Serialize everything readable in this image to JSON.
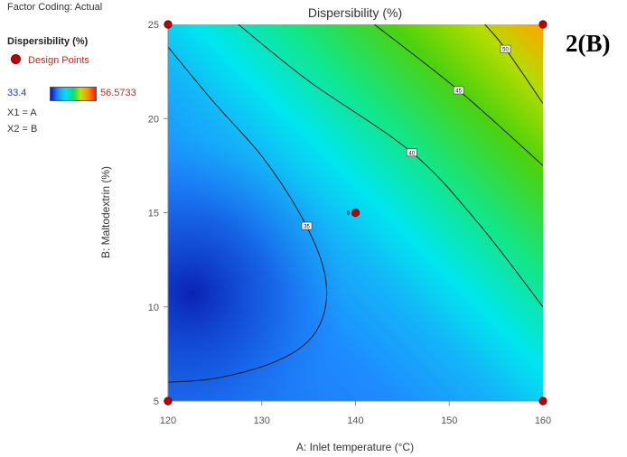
{
  "header": {
    "factor_coding": "Factor Coding: Actual"
  },
  "legend": {
    "response_title": "Dispersibility (%)",
    "design_points_label": "Design Points",
    "color_min": "33.4",
    "color_max": "56.5733",
    "x1_label": "X1 = A",
    "x2_label": "X2 = B"
  },
  "figure_label": "2(B)",
  "colors": {
    "point": "#c00000",
    "contour": "#1a1a1a"
  },
  "chart_data": {
    "type": "contour",
    "title": "Dispersibility (%)",
    "xlabel": "A: Inlet temperature (°C)",
    "ylabel": "B: Maltodextrin (%)",
    "xlim": [
      120,
      160
    ],
    "ylim": [
      5,
      25
    ],
    "x_ticks": [
      120,
      130,
      140,
      150,
      160
    ],
    "y_ticks": [
      5,
      10,
      15,
      20,
      25
    ],
    "contour_levels": [
      35,
      40,
      45,
      50
    ],
    "color_range": [
      33.4,
      56.5733
    ],
    "design_points": [
      {
        "x": 120,
        "y": 5,
        "label": ""
      },
      {
        "x": 160,
        "y": 5,
        "label": ""
      },
      {
        "x": 120,
        "y": 25,
        "label": ""
      },
      {
        "x": 160,
        "y": 25,
        "label": ""
      },
      {
        "x": 140,
        "y": 15,
        "label": "5"
      }
    ],
    "contours": [
      {
        "level": 35,
        "label_at": [
          134.8,
          14.3
        ],
        "points": [
          [
            120,
            23.8
          ],
          [
            125,
            20.8
          ],
          [
            130,
            18.0
          ],
          [
            134,
            15.0
          ],
          [
            136.5,
            12.2
          ],
          [
            136.8,
            10.0
          ],
          [
            135,
            8.2
          ],
          [
            131,
            7.0
          ],
          [
            125,
            6.2
          ],
          [
            120,
            6.0
          ]
        ]
      },
      {
        "level": 40,
        "label_at": [
          146,
          18.2
        ],
        "points": [
          [
            127.5,
            25
          ],
          [
            135,
            22
          ],
          [
            146,
            18.2
          ],
          [
            153,
            14.5
          ],
          [
            160,
            10
          ]
        ]
      },
      {
        "level": 45,
        "label_at": [
          151,
          21.5
        ],
        "points": [
          [
            142,
            25
          ],
          [
            151,
            21.5
          ],
          [
            160,
            17.5
          ]
        ]
      },
      {
        "level": 50,
        "label_at": [
          156,
          23.7
        ],
        "points": [
          [
            153.8,
            25
          ],
          [
            156,
            23.7
          ],
          [
            160,
            20.8
          ]
        ]
      }
    ]
  }
}
